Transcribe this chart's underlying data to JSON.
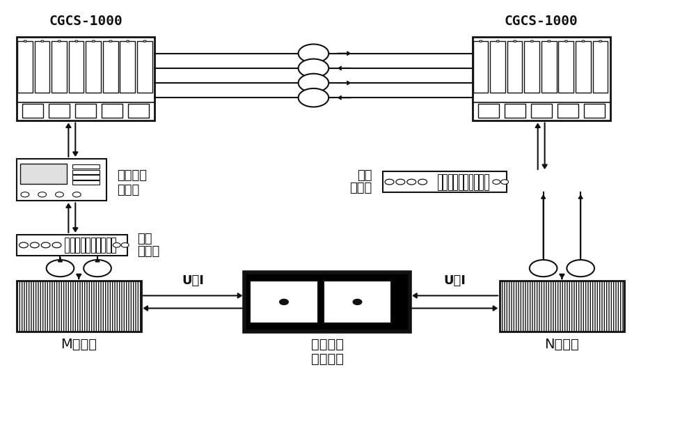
{
  "bg_color": "#ffffff",
  "cgcs_left_label": "CGCS-1000",
  "cgcs_right_label": "CGCS-1000",
  "label_error_gen": "通信误码\n发生仪",
  "label_mux_left": "复用\n接口盒",
  "label_mux_right": "复用\n接口盒",
  "label_m_protect": "M侧保护",
  "label_n_protect": "N侧保护",
  "label_rtds": "实时数字\n仿真系统",
  "label_ui_left": "U、I",
  "label_ui_right": "U、I",
  "lc": "#111111"
}
